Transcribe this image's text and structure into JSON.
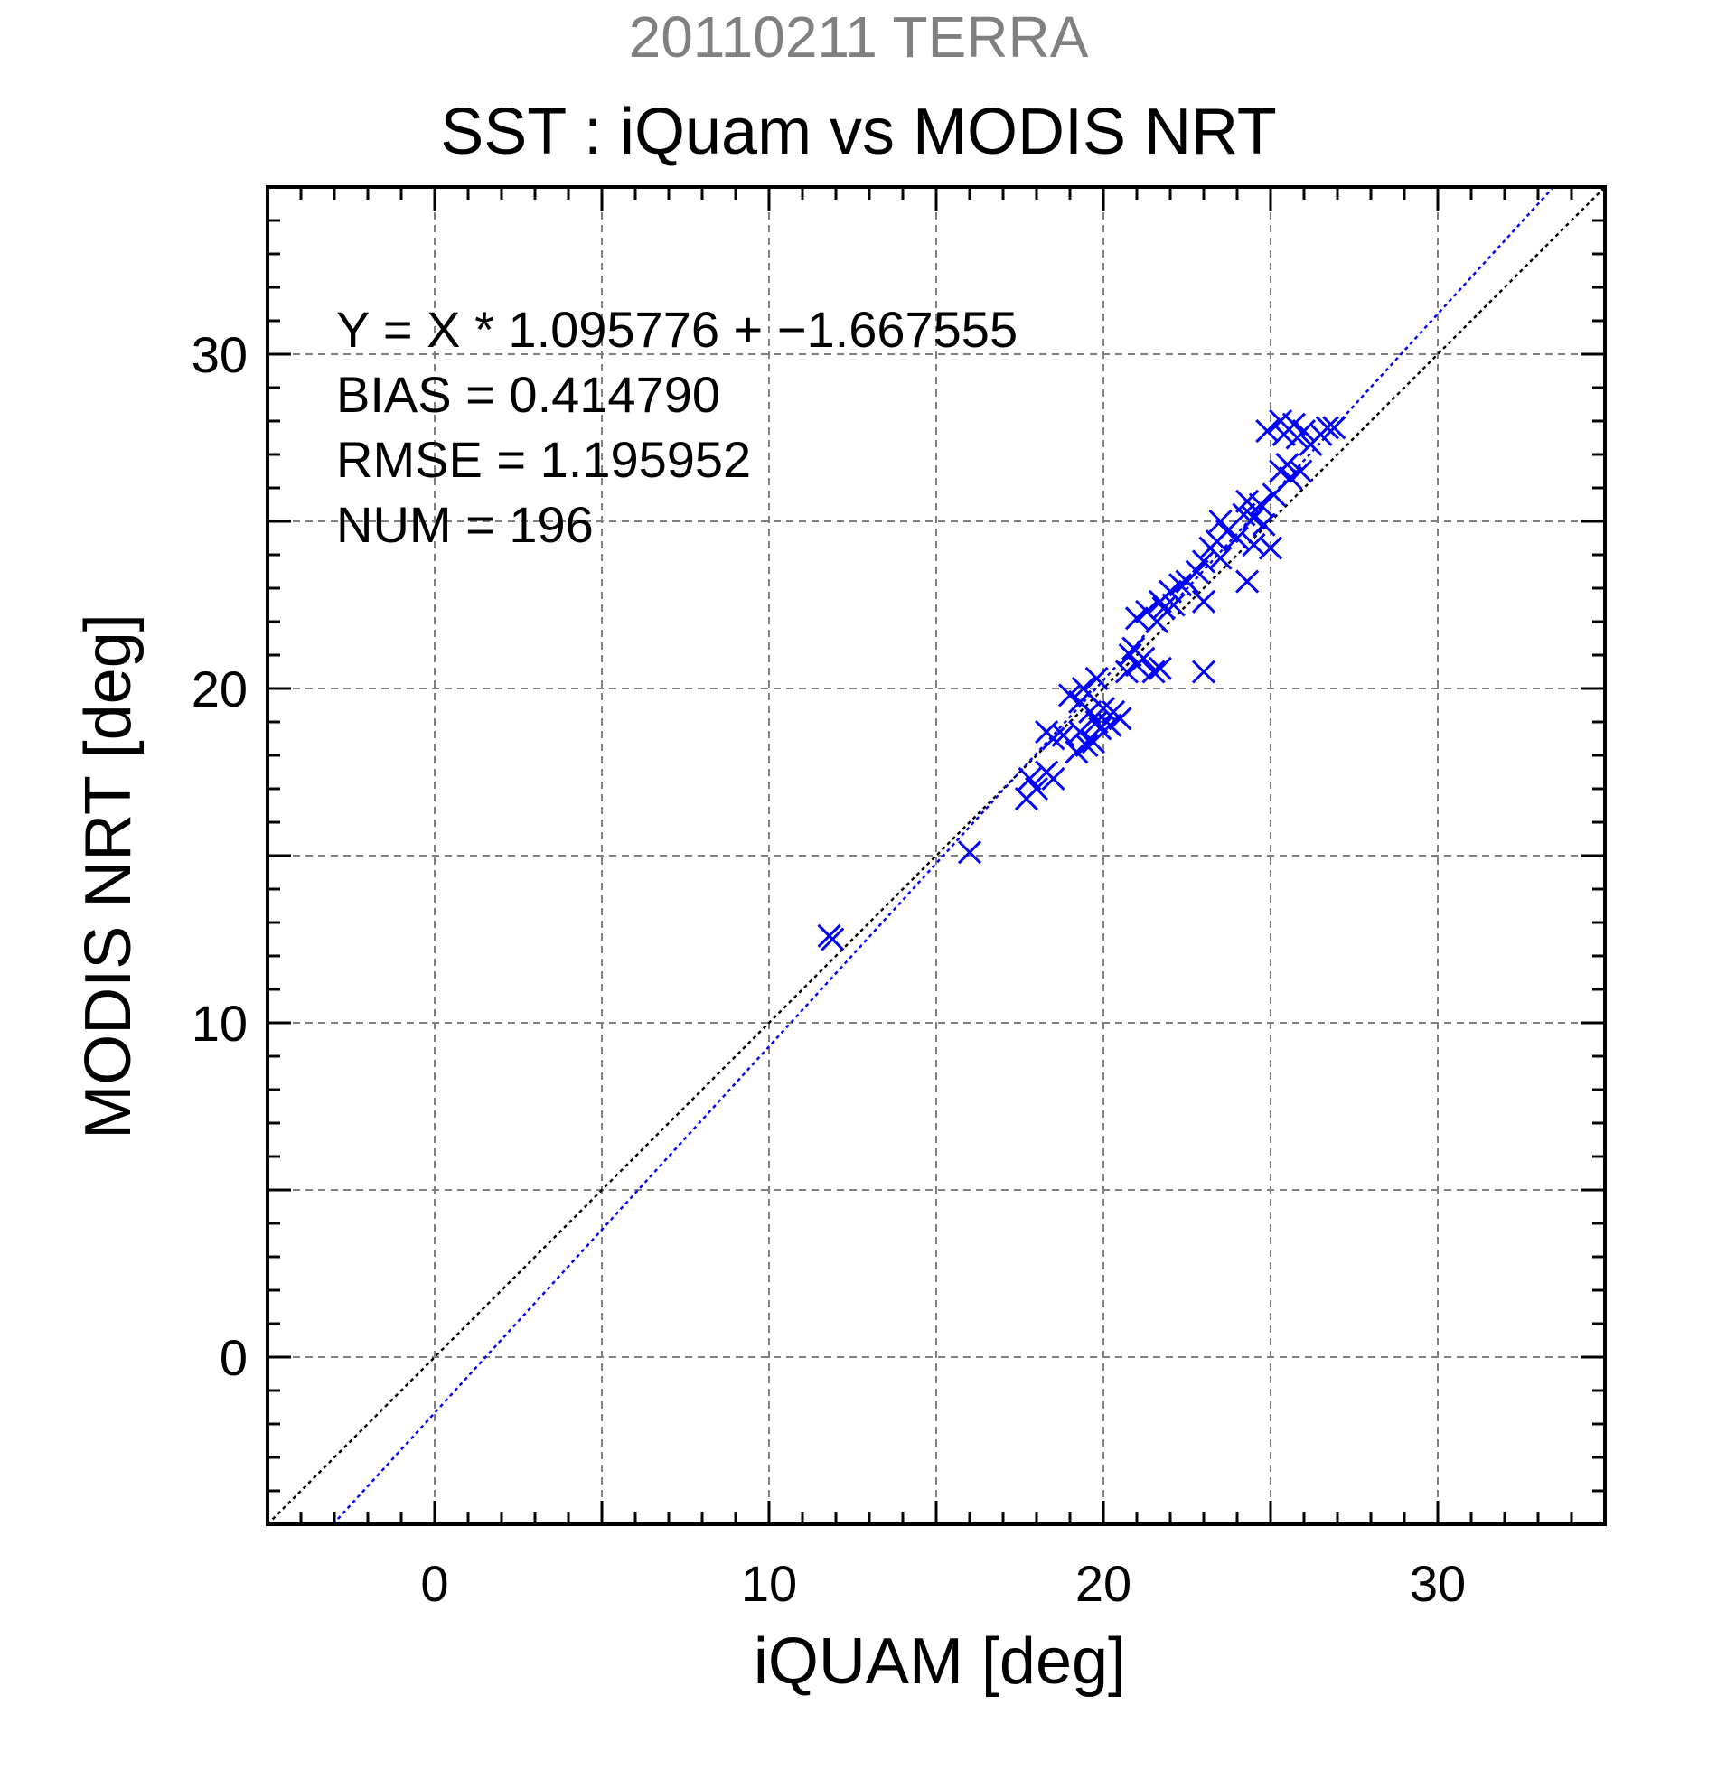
{
  "supertitle": "20110211 TERRA",
  "title": "SST : iQuam vs MODIS NRT",
  "stats": {
    "equation": "Y = X * 1.095776 + −1.667555",
    "bias": "BIAS = 0.414790",
    "rmse": "RMSE = 1.195952",
    "num": "NUM = 196"
  },
  "colors": {
    "points": "#0000ff",
    "fit_line": "#0000ff",
    "identity_line": "#000000",
    "grid": "#808080"
  },
  "chart_data": {
    "type": "scatter",
    "title": "SST : iQuam vs MODIS NRT",
    "xlabel": "iQUAM [deg]",
    "ylabel": "MODIS NRT [deg]",
    "xlim": [
      -5,
      35
    ],
    "ylim": [
      -5,
      35
    ],
    "xticks": [
      0,
      10,
      20,
      30
    ],
    "yticks": [
      0,
      10,
      20,
      30
    ],
    "grid": true,
    "marker": "x",
    "fit": {
      "slope": 1.095776,
      "intercept": -1.667555
    },
    "identity_line": true,
    "points": [
      [
        11.8,
        12.6
      ],
      [
        11.9,
        12.5
      ],
      [
        16.0,
        15.1
      ],
      [
        17.7,
        16.7
      ],
      [
        17.8,
        17.3
      ],
      [
        18.0,
        17.0
      ],
      [
        18.3,
        17.5
      ],
      [
        18.5,
        17.3
      ],
      [
        18.3,
        18.7
      ],
      [
        18.5,
        18.5
      ],
      [
        18.8,
        18.6
      ],
      [
        19.0,
        19.8
      ],
      [
        19.2,
        18.1
      ],
      [
        19.3,
        18.7
      ],
      [
        19.3,
        19.6
      ],
      [
        19.4,
        20.0
      ],
      [
        19.5,
        18.3
      ],
      [
        19.6,
        19.3
      ],
      [
        19.7,
        18.4
      ],
      [
        19.8,
        19.0
      ],
      [
        19.8,
        20.3
      ],
      [
        19.9,
        18.8
      ],
      [
        20.0,
        19.4
      ],
      [
        20.2,
        18.9
      ],
      [
        20.3,
        19.3
      ],
      [
        20.5,
        19.1
      ],
      [
        20.7,
        20.5
      ],
      [
        20.8,
        21.0
      ],
      [
        20.9,
        21.2
      ],
      [
        21.0,
        20.7
      ],
      [
        21.0,
        22.1
      ],
      [
        21.2,
        20.9
      ],
      [
        21.3,
        22.3
      ],
      [
        21.5,
        20.5
      ],
      [
        21.6,
        22.0
      ],
      [
        21.7,
        20.6
      ],
      [
        21.7,
        22.6
      ],
      [
        21.8,
        22.4
      ],
      [
        22.0,
        22.9
      ],
      [
        22.1,
        22.5
      ],
      [
        22.3,
        23.1
      ],
      [
        22.5,
        23.2
      ],
      [
        22.8,
        23.5
      ],
      [
        23.0,
        22.6
      ],
      [
        23.0,
        20.5
      ],
      [
        23.0,
        23.8
      ],
      [
        23.2,
        24.2
      ],
      [
        23.4,
        24.4
      ],
      [
        23.5,
        25.0
      ],
      [
        23.5,
        23.9
      ],
      [
        23.7,
        24.7
      ],
      [
        24.0,
        24.5
      ],
      [
        24.2,
        25.2
      ],
      [
        24.3,
        25.6
      ],
      [
        24.3,
        23.2
      ],
      [
        24.5,
        25.1
      ],
      [
        24.5,
        24.3
      ],
      [
        24.7,
        25.5
      ],
      [
        24.8,
        24.9
      ],
      [
        24.9,
        27.7
      ],
      [
        25.0,
        24.2
      ],
      [
        25.1,
        25.8
      ],
      [
        25.3,
        26.5
      ],
      [
        25.3,
        28.0
      ],
      [
        25.4,
        27.6
      ],
      [
        25.5,
        26.7
      ],
      [
        25.6,
        26.3
      ],
      [
        25.7,
        27.9
      ],
      [
        25.8,
        27.5
      ],
      [
        25.9,
        26.5
      ],
      [
        26.0,
        27.7
      ],
      [
        26.2,
        27.3
      ],
      [
        26.5,
        27.6
      ],
      [
        26.7,
        27.8
      ],
      [
        26.9,
        27.8
      ]
    ]
  }
}
